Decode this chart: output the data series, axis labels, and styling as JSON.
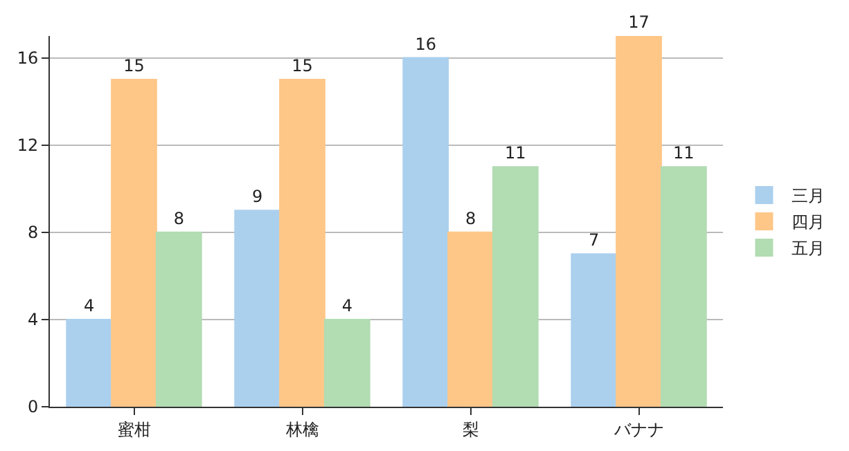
{
  "chart_data": {
    "type": "bar",
    "categories": [
      "蜜柑",
      "林檎",
      "梨",
      "バナナ"
    ],
    "series": [
      {
        "name": "三月",
        "color": "#abd0ee",
        "values": [
          4,
          9,
          16,
          7
        ]
      },
      {
        "name": "四月",
        "color": "#fec788",
        "values": [
          15,
          15,
          8,
          17
        ]
      },
      {
        "name": "五月",
        "color": "#b2dcb2",
        "values": [
          8,
          4,
          11,
          11
        ]
      }
    ],
    "ylim": [
      0,
      17
    ],
    "yticks": [
      0,
      4,
      8,
      12,
      16
    ],
    "grid": "y",
    "legend": "right",
    "data_labels": true
  }
}
